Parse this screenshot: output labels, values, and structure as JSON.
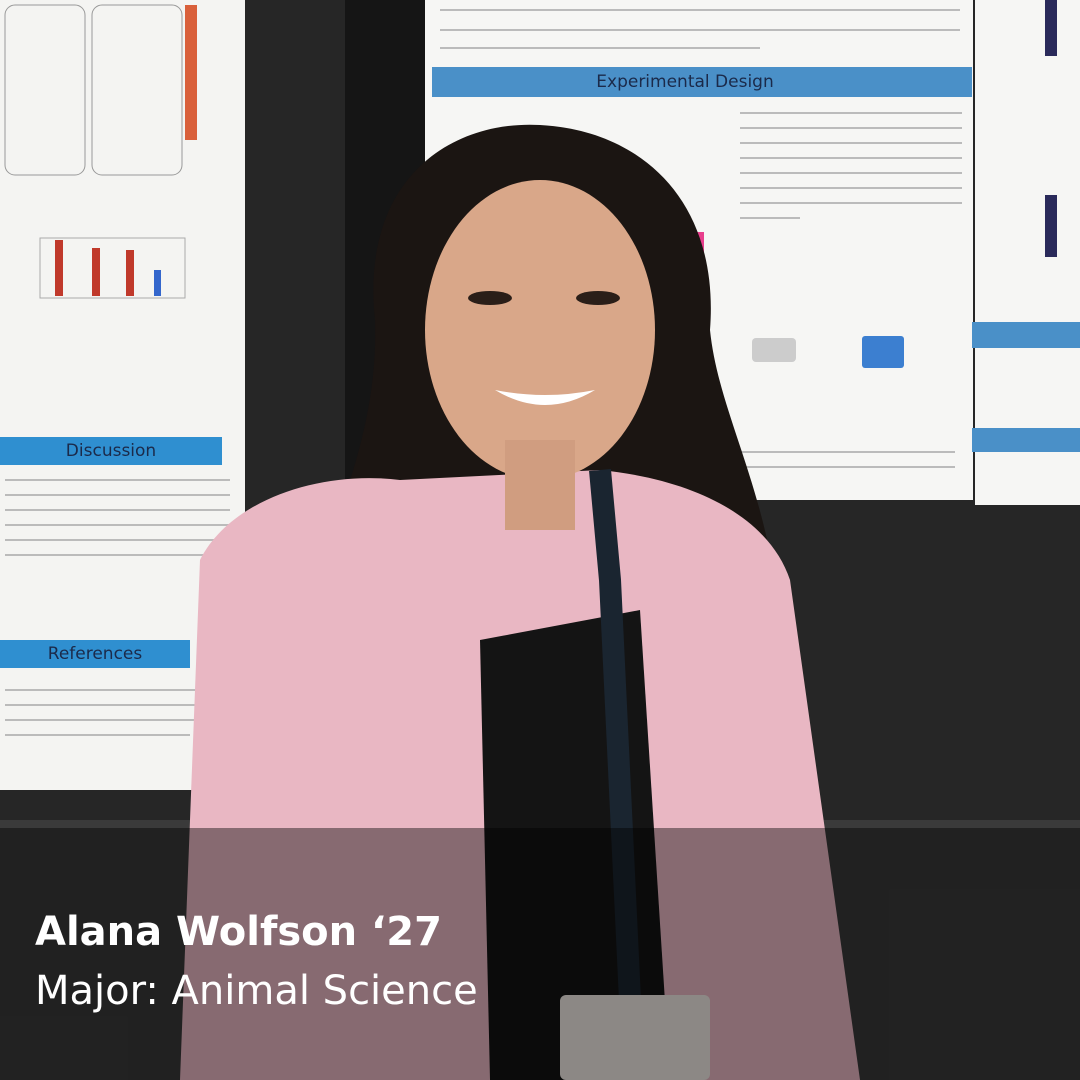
{
  "caption": {
    "name": "Alana Wolfson ‘27",
    "detail": "Major: Animal Science"
  },
  "posters": {
    "left": {
      "headings": [
        "Discussion",
        "References"
      ]
    },
    "right": {
      "headings": [
        "Experimental Design"
      ]
    }
  }
}
